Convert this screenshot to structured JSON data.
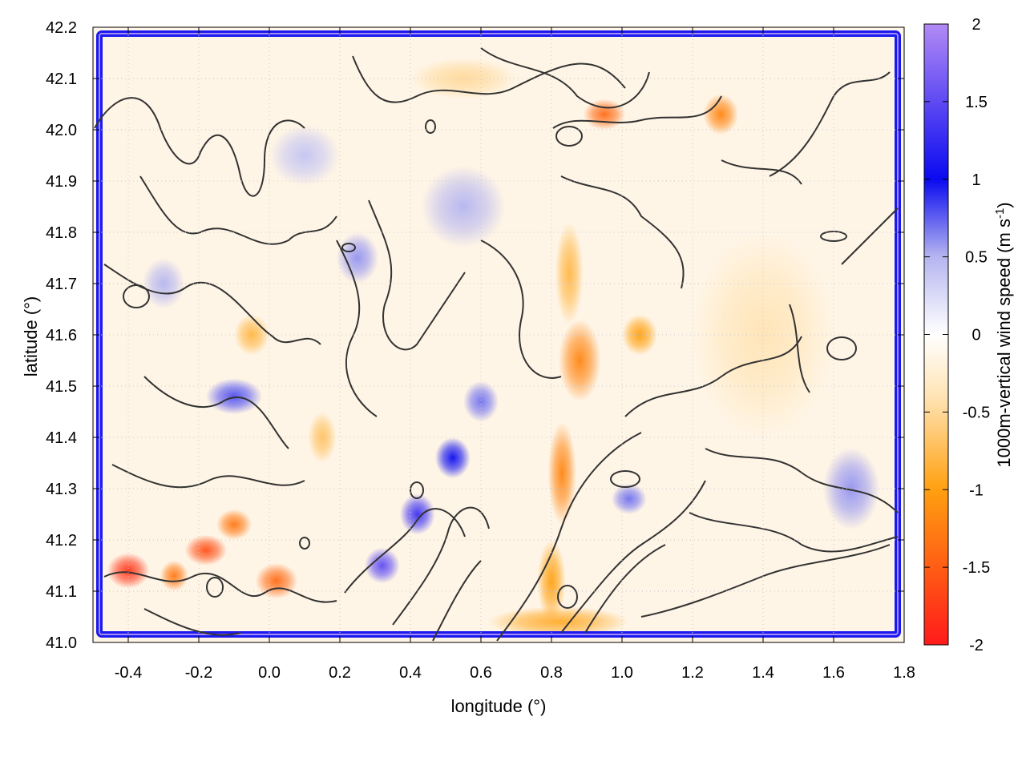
{
  "chart_data": {
    "type": "heatmap",
    "title": "",
    "xlabel": "longitude (°)",
    "ylabel": "latitude (°)",
    "colorbar_label": {
      "main": "1000m-vertical wind speed (m s",
      "superscript": "-1",
      "closing": ")"
    },
    "xlim": [
      -0.5,
      1.8
    ],
    "ylim": [
      41.0,
      42.2
    ],
    "clim": [
      -2,
      2
    ],
    "x_ticks": [
      -0.4,
      -0.2,
      0.0,
      0.2,
      0.4,
      0.6,
      0.8,
      1.0,
      1.2,
      1.4,
      1.6,
      1.8
    ],
    "x_tick_labels": [
      "-0.4",
      "-0.2",
      "0.0",
      "0.2",
      "0.4",
      "0.6",
      "0.8",
      "1.0",
      "1.2",
      "1.4",
      "1.6",
      "1.8"
    ],
    "y_ticks": [
      41.0,
      41.1,
      41.2,
      41.3,
      41.4,
      41.5,
      41.6,
      41.7,
      41.8,
      41.9,
      42.0,
      42.1,
      42.2
    ],
    "y_tick_labels": [
      "41.0",
      "41.1",
      "41.2",
      "41.3",
      "41.4",
      "41.5",
      "41.6",
      "41.7",
      "41.8",
      "41.9",
      "42.0",
      "42.1",
      "42.2"
    ],
    "colorbar_ticks": [
      -2,
      -1.5,
      -1,
      -0.5,
      0,
      0.5,
      1,
      1.5,
      2
    ],
    "colorbar_tick_labels": [
      "-2",
      "-1.5",
      "-1",
      "-0.5",
      "0",
      "0.5",
      "1",
      "1.5",
      "2"
    ],
    "colormap": [
      {
        "value": -2.0,
        "color": "#ff1a1a"
      },
      {
        "value": -1.0,
        "color": "#ffa010"
      },
      {
        "value": -0.4,
        "color": "#ffe4b5"
      },
      {
        "value": 0.0,
        "color": "#ffffff"
      },
      {
        "value": 0.5,
        "color": "#b5b5f0"
      },
      {
        "value": 1.0,
        "color": "#0a0af0"
      },
      {
        "value": 2.0,
        "color": "#b28af5"
      }
    ],
    "grid": true,
    "contours": true,
    "field_features": [
      {
        "lon": 0.95,
        "lat": 42.03,
        "value": -1.4,
        "sx": 0.06,
        "sy": 0.03
      },
      {
        "lon": 1.28,
        "lat": 42.03,
        "value": -1.2,
        "sx": 0.05,
        "sy": 0.04
      },
      {
        "lon": 0.55,
        "lat": 42.1,
        "value": -0.5,
        "sx": 0.15,
        "sy": 0.04
      },
      {
        "lon": 0.88,
        "lat": 41.55,
        "value": -1.2,
        "sx": 0.06,
        "sy": 0.08
      },
      {
        "lon": 1.05,
        "lat": 41.6,
        "value": -1.0,
        "sx": 0.05,
        "sy": 0.04
      },
      {
        "lon": 0.85,
        "lat": 41.72,
        "value": -0.8,
        "sx": 0.04,
        "sy": 0.1
      },
      {
        "lon": 0.83,
        "lat": 41.33,
        "value": -1.2,
        "sx": 0.04,
        "sy": 0.1
      },
      {
        "lon": 0.8,
        "lat": 41.12,
        "value": -1.0,
        "sx": 0.04,
        "sy": 0.08
      },
      {
        "lon": 0.82,
        "lat": 41.04,
        "value": -0.9,
        "sx": 0.2,
        "sy": 0.03
      },
      {
        "lon": -0.4,
        "lat": 41.14,
        "value": -1.8,
        "sx": 0.06,
        "sy": 0.035
      },
      {
        "lon": -0.18,
        "lat": 41.18,
        "value": -1.6,
        "sx": 0.06,
        "sy": 0.03
      },
      {
        "lon": -0.1,
        "lat": 41.23,
        "value": -1.3,
        "sx": 0.05,
        "sy": 0.03
      },
      {
        "lon": 0.02,
        "lat": 41.12,
        "value": -1.4,
        "sx": 0.06,
        "sy": 0.035
      },
      {
        "lon": -0.27,
        "lat": 41.13,
        "value": -1.3,
        "sx": 0.04,
        "sy": 0.03
      },
      {
        "lon": 0.15,
        "lat": 41.4,
        "value": -0.7,
        "sx": 0.04,
        "sy": 0.05
      },
      {
        "lon": -0.05,
        "lat": 41.6,
        "value": -0.8,
        "sx": 0.05,
        "sy": 0.04
      },
      {
        "lon": 1.4,
        "lat": 41.6,
        "value": -0.4,
        "sx": 0.2,
        "sy": 0.2
      },
      {
        "lon": 0.32,
        "lat": 41.15,
        "value": 1.5,
        "sx": 0.05,
        "sy": 0.035
      },
      {
        "lon": 0.42,
        "lat": 41.25,
        "value": 1.3,
        "sx": 0.05,
        "sy": 0.04
      },
      {
        "lon": 0.52,
        "lat": 41.36,
        "value": 1.0,
        "sx": 0.05,
        "sy": 0.04
      },
      {
        "lon": 0.6,
        "lat": 41.47,
        "value": 0.7,
        "sx": 0.05,
        "sy": 0.04
      },
      {
        "lon": -0.1,
        "lat": 41.48,
        "value": 0.8,
        "sx": 0.08,
        "sy": 0.035
      },
      {
        "lon": 0.55,
        "lat": 41.85,
        "value": 0.5,
        "sx": 0.12,
        "sy": 0.08
      },
      {
        "lon": 0.1,
        "lat": 41.95,
        "value": 0.4,
        "sx": 0.1,
        "sy": 0.06
      },
      {
        "lon": 1.02,
        "lat": 41.28,
        "value": 0.7,
        "sx": 0.05,
        "sy": 0.03
      },
      {
        "lon": 1.65,
        "lat": 41.3,
        "value": 0.6,
        "sx": 0.08,
        "sy": 0.08
      },
      {
        "lon": 0.25,
        "lat": 41.75,
        "value": 0.6,
        "sx": 0.06,
        "sy": 0.05
      },
      {
        "lon": -0.3,
        "lat": 41.7,
        "value": 0.5,
        "sx": 0.06,
        "sy": 0.05
      }
    ]
  }
}
